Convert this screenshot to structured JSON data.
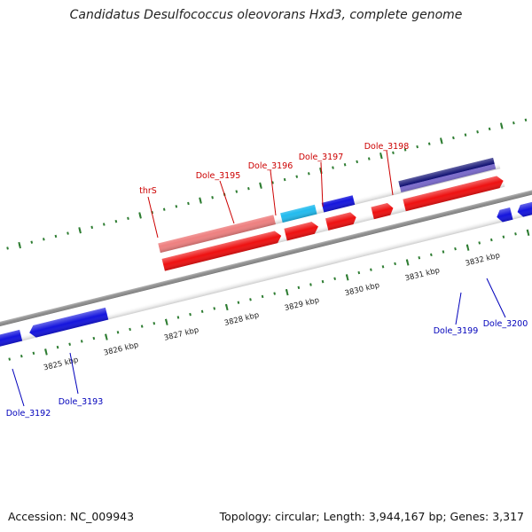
{
  "title": "Candidatus Desulfococcus oleovorans Hxd3, complete genome",
  "footer": {
    "accession": "Accession: NC_009943",
    "summary": "Topology: circular; Length: 3,944,167 bp; Genes: 3,317"
  },
  "colors": {
    "backbone": "#8c8c8c",
    "tick": "#2e7d32",
    "forward_label": "#cc0000",
    "reverse_label": "#0000bb",
    "red": "#ee1111",
    "pink": "#ee8080",
    "blue": "#1515dd",
    "cyan": "#22bbee",
    "navy": "#0a0a70",
    "purple": "#7a6acc",
    "olive": "#6a9a2a"
  },
  "scale_ticks": [
    "3825 kbp",
    "3826 kbp",
    "3827 kbp",
    "3828 kbp",
    "3829 kbp",
    "3830 kbp",
    "3831 kbp",
    "3832 kbp"
  ],
  "forward_labels": [
    "thrS",
    "Dole_3195",
    "Dole_3196",
    "Dole_3197",
    "Dole_3198"
  ],
  "reverse_labels": [
    "Dole_3192",
    "Dole_3193",
    "Dole_3199",
    "Dole_3200"
  ]
}
